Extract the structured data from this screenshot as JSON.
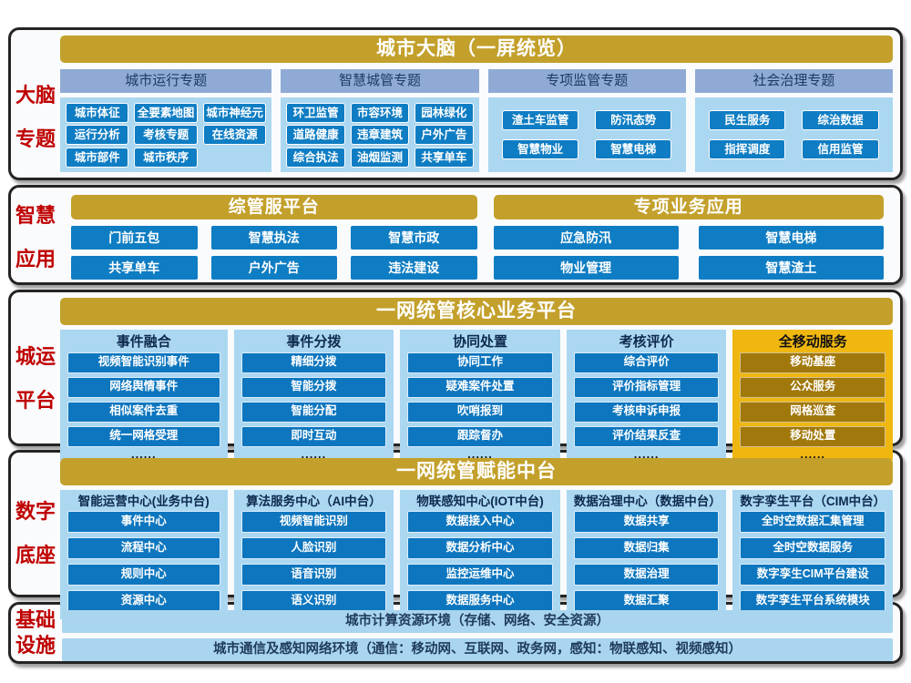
{
  "colors": {
    "gold_header": "#c3a02b",
    "gold_panel": "#efb70f",
    "gold_tile": "#a1780b",
    "steel_blue_header": "#8fabd5",
    "light_blue_panel": "#abd7f1",
    "blue_tile": "#0f7dc3",
    "red_label": "#bf0000"
  },
  "sections": {
    "brain": {
      "label": [
        "大脑",
        "专题"
      ],
      "header": "城市大脑（一屏统览）",
      "columns": [
        {
          "title": "城市运行专题",
          "rows": [
            [
              "城市体征",
              "全要素地图",
              "城市神经元"
            ],
            [
              "运行分析",
              "考核专题",
              "在线资源"
            ],
            [
              "城市部件",
              "城市秩序"
            ]
          ]
        },
        {
          "title": "智慧城管专题",
          "rows": [
            [
              "环卫监管",
              "市容环境",
              "园林绿化"
            ],
            [
              "道路健康",
              "违章建筑",
              "户外广告"
            ],
            [
              "综合执法",
              "油烟监测",
              "共享单车"
            ]
          ]
        },
        {
          "title": "专项监管专题",
          "rows": [
            [
              "渣土车监管",
              "防汛态势"
            ],
            [
              "智慧物业",
              "智慧电梯"
            ]
          ]
        },
        {
          "title": "社会治理专题",
          "rows": [
            [
              "民生服务",
              "综治数据"
            ],
            [
              "指挥调度",
              "信用监管"
            ]
          ]
        }
      ]
    },
    "apps": {
      "label": [
        "智慧",
        "应用"
      ],
      "groups": [
        {
          "header": "综管服平台",
          "rows": [
            [
              "门前五包",
              "智慧执法",
              "智慧市政"
            ],
            [
              "共享单车",
              "户外广告",
              "违法建设"
            ]
          ]
        },
        {
          "header": "专项业务应用",
          "rows": [
            [
              "应急防汛",
              "智慧电梯"
            ],
            [
              "物业管理",
              "智慧渣土"
            ]
          ]
        }
      ]
    },
    "core": {
      "label": [
        "城运",
        "平台"
      ],
      "header": "一网统管核心业务平台",
      "more": "......",
      "columns": [
        {
          "title": "事件融合",
          "buttons": [
            "视频智能识别事件",
            "网络舆情事件",
            "相似案件去重",
            "统一网格受理"
          ]
        },
        {
          "title": "事件分拨",
          "buttons": [
            "精细分拨",
            "智能分拨",
            "智能分配",
            "即时互动"
          ]
        },
        {
          "title": "协同处置",
          "buttons": [
            "协同工作",
            "疑难案件处置",
            "吹哨报到",
            "跟踪督办"
          ]
        },
        {
          "title": "考核评价",
          "buttons": [
            "综合评价",
            "评价指标管理",
            "考核申诉申报",
            "评价结果反查"
          ]
        },
        {
          "title": "全移动服务",
          "buttons": [
            "移动基座",
            "公众服务",
            "网格巡查",
            "移动处置"
          ]
        }
      ]
    },
    "enable": {
      "label": [
        "数字",
        "底座"
      ],
      "header": "一网统管赋能中台",
      "columns": [
        {
          "title": "智能运营中心(业务中台)",
          "buttons": [
            "事件中心",
            "流程中心",
            "规则中心",
            "资源中心"
          ]
        },
        {
          "title": "算法服务中心（AI中台）",
          "buttons": [
            "视频智能识别",
            "人脸识别",
            "语音识别",
            "语义识别"
          ]
        },
        {
          "title": "物联感知中心(IOT中台)",
          "buttons": [
            "数据接入中心",
            "数据分析中心",
            "监控运维中心",
            "数据服务中心"
          ]
        },
        {
          "title": "数据治理中心（数据中台）",
          "buttons": [
            "数据共享",
            "数据归集",
            "数据治理",
            "数据汇聚"
          ]
        },
        {
          "title": "数字孪生平台（CIM中台）",
          "buttons": [
            "全时空数据汇集管理",
            "全时空数据服务",
            "数字孪生CIM平台建设",
            "数字孪生平台系统模块"
          ]
        }
      ]
    },
    "infra": {
      "label": [
        "基础",
        "设施"
      ],
      "bars": [
        "城市计算资源环境（存储、网络、安全资源）",
        "城市通信及感知网络环境（通信：移动网、互联网、政务网，感知：物联感知、视频感知）"
      ]
    }
  }
}
